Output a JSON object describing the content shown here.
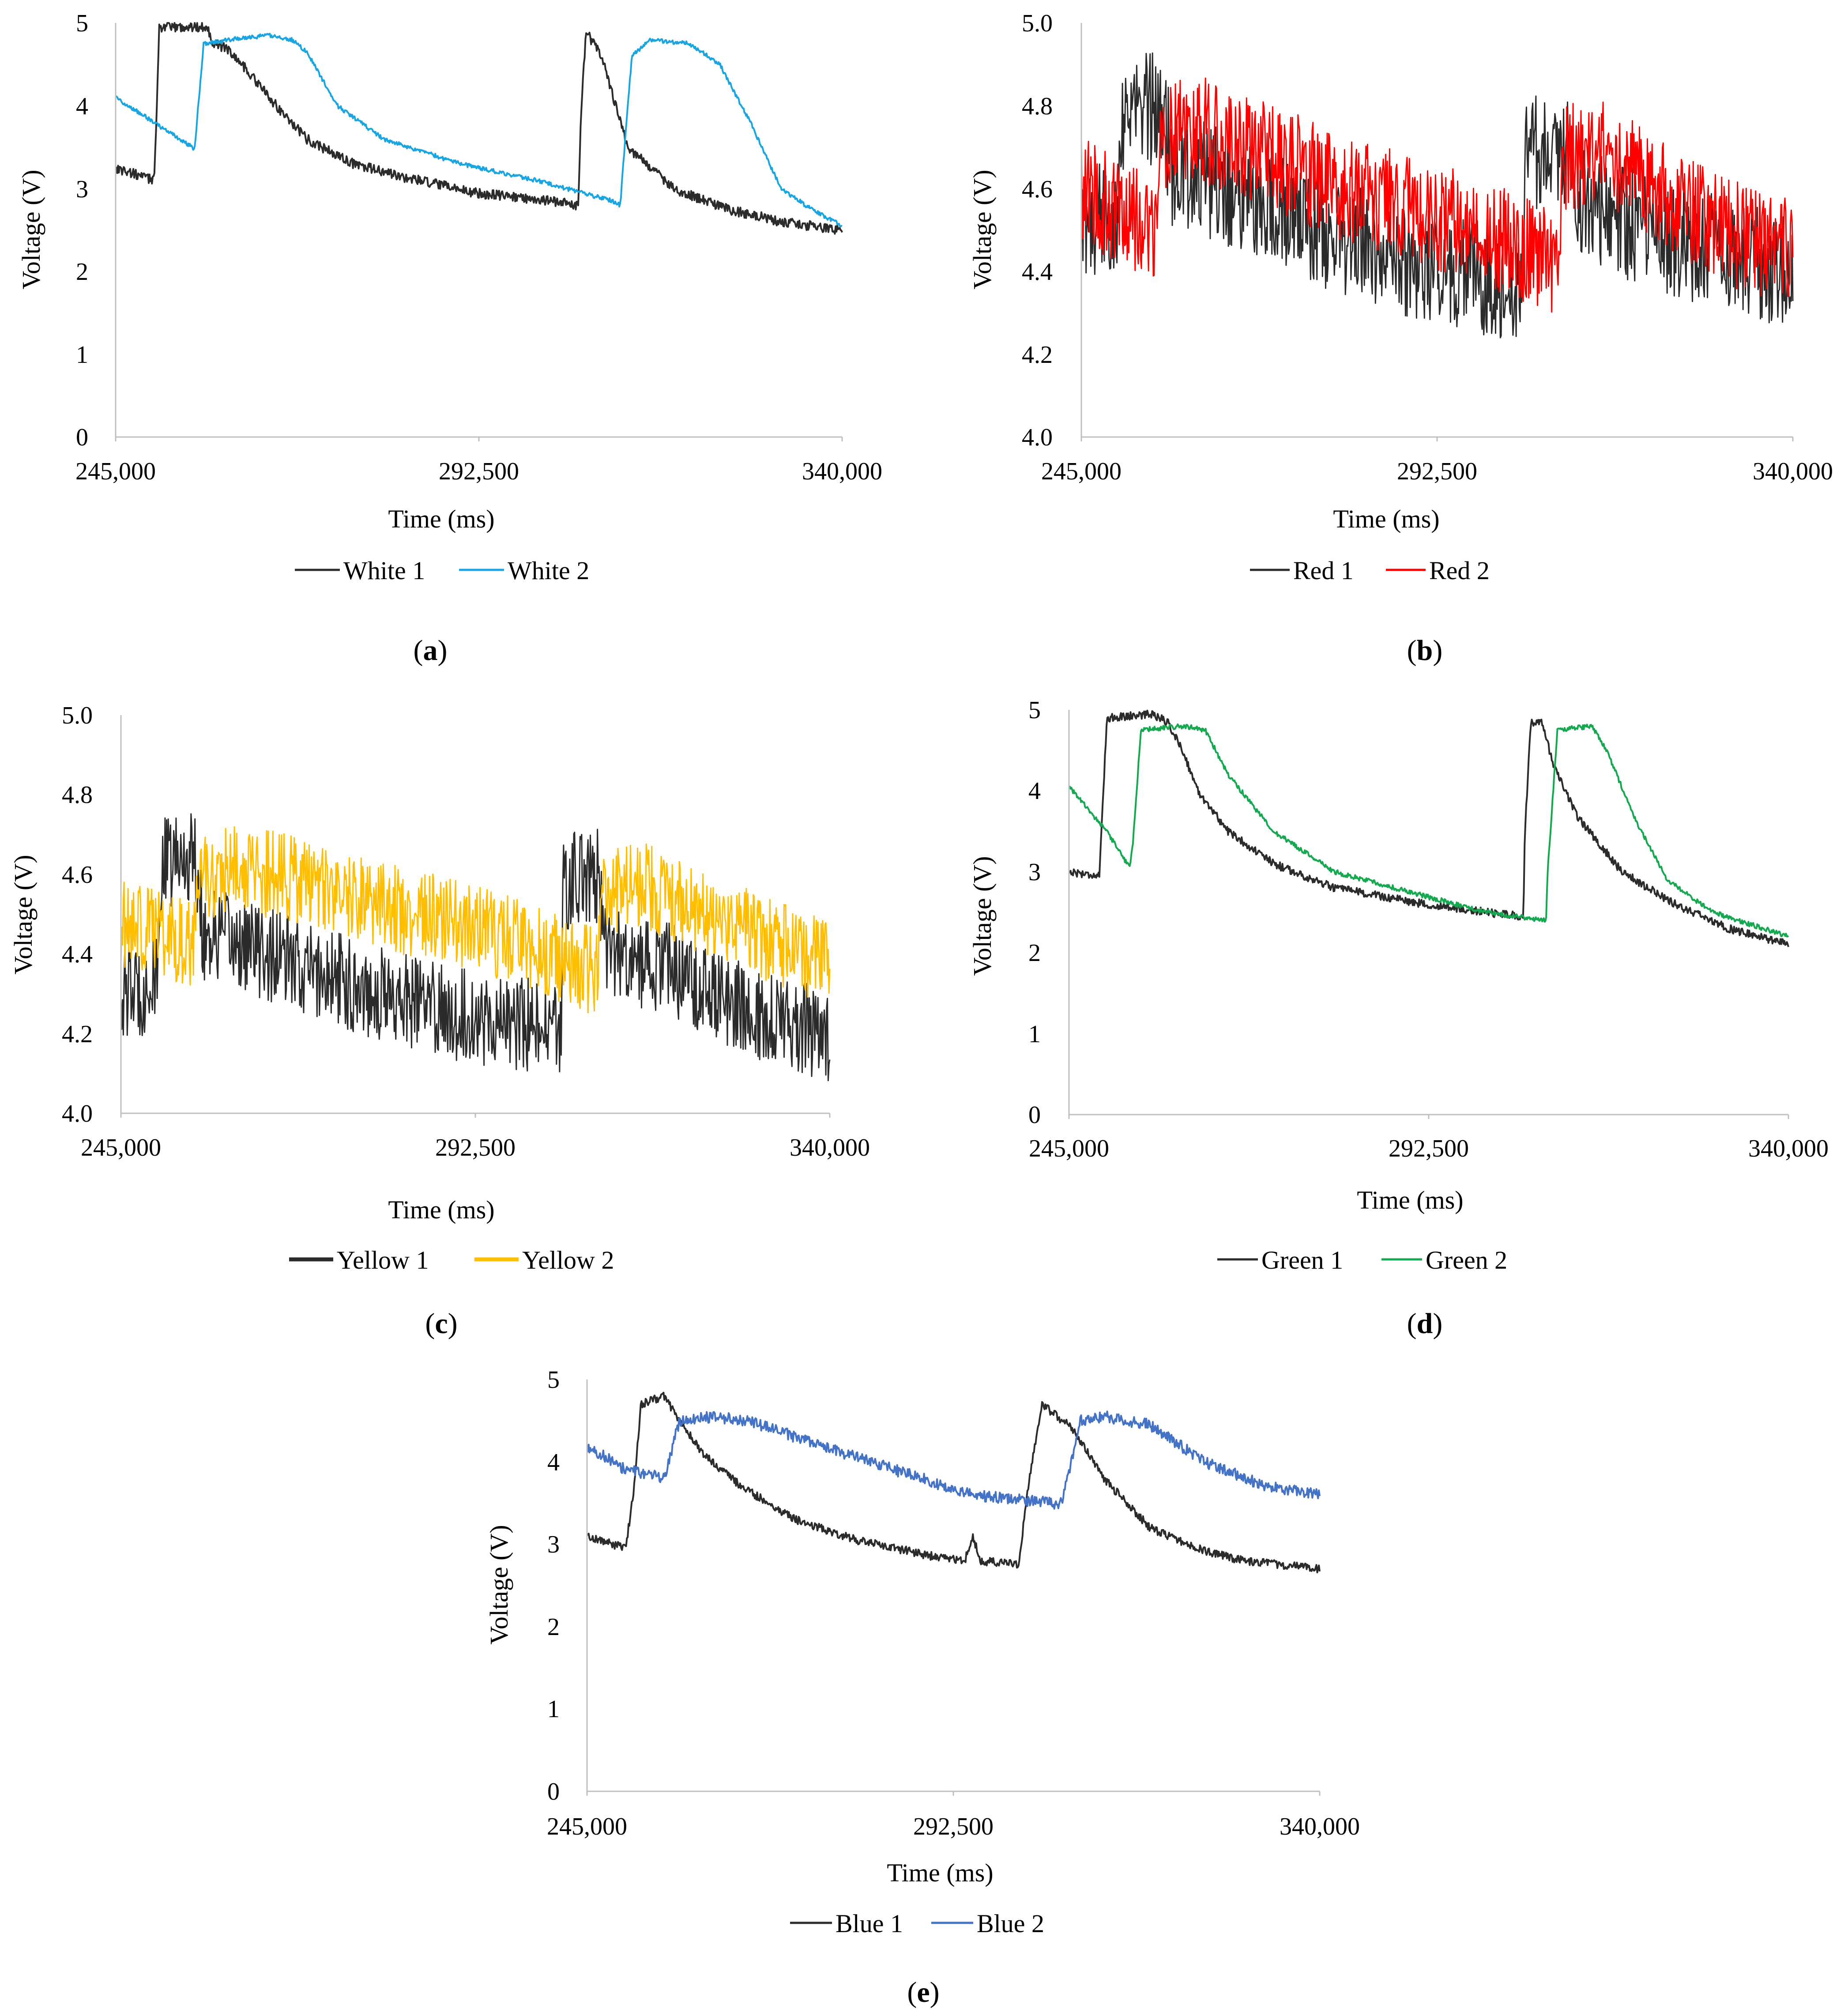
{
  "figure": {
    "panels": [
      {
        "id": "a",
        "caption": "a"
      },
      {
        "id": "b",
        "caption": "b"
      },
      {
        "id": "c",
        "caption": "c"
      },
      {
        "id": "d",
        "caption": "d"
      },
      {
        "id": "e",
        "caption": "e"
      }
    ]
  },
  "chart_data": [
    {
      "panel": "a",
      "type": "line",
      "xlabel": "Time (ms)",
      "ylabel": "Voltage  (V)",
      "xlim": [
        245000,
        340000
      ],
      "ylim": [
        0,
        5
      ],
      "xticks": [
        "245,000",
        "292,500",
        "340,000"
      ],
      "yticks": [
        "0",
        "1",
        "2",
        "3",
        "4",
        "5"
      ],
      "legend_position": "bottom",
      "series": [
        {
          "name": "White 1",
          "color": "#2b2b2b",
          "noise": 0.06,
          "x": [
            245000,
            250000,
            250200,
            250700,
            257000,
            257800,
            259500,
            262000,
            266000,
            270000,
            276000,
            282000,
            292000,
            302000,
            305500,
            305800,
            306500,
            308500,
            312000,
            318000,
            325000,
            332000,
            340000
          ],
          "y": [
            3.25,
            3.1,
            3.5,
            4.95,
            4.95,
            4.75,
            4.7,
            4.45,
            4.0,
            3.6,
            3.3,
            3.15,
            2.95,
            2.85,
            2.8,
            3.8,
            4.9,
            4.6,
            3.5,
            3.0,
            2.75,
            2.6,
            2.5
          ]
        },
        {
          "name": "White 2",
          "color": "#1ba5e0",
          "noise": 0.025,
          "x": [
            245000,
            250000,
            255000,
            255300,
            256500,
            260000,
            265000,
            268000,
            270000,
            274000,
            280000,
            290000,
            300000,
            310000,
            311000,
            311300,
            312500,
            315000,
            320000,
            324000,
            328000,
            332000,
            336000,
            340000
          ],
          "y": [
            4.1,
            3.8,
            3.5,
            3.45,
            4.75,
            4.8,
            4.85,
            4.8,
            4.65,
            4.0,
            3.6,
            3.3,
            3.1,
            2.85,
            2.8,
            3.2,
            4.6,
            4.8,
            4.75,
            4.5,
            3.8,
            3.0,
            2.75,
            2.55
          ]
        }
      ]
    },
    {
      "panel": "b",
      "type": "line",
      "xlabel": "Time (ms)",
      "ylabel": "Voltage  (V)",
      "xlim": [
        245000,
        340000
      ],
      "ylim": [
        4.0,
        5.0
      ],
      "xticks": [
        "245,000",
        "292,500",
        "340,000"
      ],
      "yticks": [
        "4.0",
        "4.2",
        "4.4",
        "4.6",
        "4.8",
        "5.0"
      ],
      "legend_position": "bottom",
      "series": [
        {
          "name": "Red 1",
          "color": "#2b2b2b",
          "noise": 0.14,
          "x": [
            245000,
            250000,
            250300,
            256000,
            257000,
            262000,
            270000,
            280000,
            290000,
            300000,
            304000,
            304300,
            310000,
            311000,
            320000,
            330000,
            340000
          ],
          "y": [
            4.5,
            4.55,
            4.78,
            4.8,
            4.65,
            4.62,
            4.55,
            4.48,
            4.42,
            4.38,
            4.35,
            4.68,
            4.7,
            4.58,
            4.5,
            4.45,
            4.4
          ]
        },
        {
          "name": "Red 2",
          "color": "#ff0000",
          "noise": 0.13,
          "x": [
            245000,
            250000,
            255000,
            255300,
            260000,
            270000,
            280000,
            290000,
            300000,
            309000,
            309300,
            315000,
            320000,
            330000,
            340000
          ],
          "y": [
            4.6,
            4.55,
            4.5,
            4.72,
            4.75,
            4.68,
            4.6,
            4.55,
            4.48,
            4.42,
            4.68,
            4.68,
            4.62,
            4.5,
            4.45
          ]
        }
      ]
    },
    {
      "panel": "c",
      "type": "line",
      "xlabel": "Time (ms)",
      "ylabel": "Voltage  (V)",
      "xlim": [
        245000,
        340000
      ],
      "ylim": [
        4.0,
        5.0
      ],
      "xticks": [
        "245,000",
        "292,500",
        "340,000"
      ],
      "yticks": [
        "4.0",
        "4.2",
        "4.4",
        "4.6",
        "4.8",
        "5.0"
      ],
      "legend_position": "bottom",
      "series": [
        {
          "name": "Yellow 1",
          "color": "#2b2b2b",
          "noise": 0.12,
          "x": [
            245000,
            250000,
            250300,
            255000,
            256000,
            262000,
            270000,
            280000,
            290000,
            300000,
            304000,
            304300,
            309000,
            310000,
            320000,
            330000,
            340000
          ],
          "y": [
            4.3,
            4.32,
            4.62,
            4.65,
            4.45,
            4.42,
            4.36,
            4.3,
            4.25,
            4.22,
            4.2,
            4.58,
            4.6,
            4.4,
            4.35,
            4.25,
            4.2
          ]
        },
        {
          "name": "Yellow 2",
          "color": "#ffbe00",
          "noise": 0.11,
          "x": [
            245000,
            250000,
            255000,
            255300,
            260000,
            270000,
            280000,
            290000,
            300000,
            309000,
            309300,
            315000,
            320000,
            330000,
            340000
          ],
          "y": [
            4.48,
            4.45,
            4.42,
            4.58,
            4.62,
            4.58,
            4.52,
            4.48,
            4.42,
            4.35,
            4.55,
            4.58,
            4.52,
            4.45,
            4.38
          ]
        }
      ]
    },
    {
      "panel": "d",
      "type": "line",
      "xlabel": "Time (ms)",
      "ylabel": "Voltage  (V)",
      "xlim": [
        245000,
        340000
      ],
      "ylim": [
        0,
        5
      ],
      "xticks": [
        "245,000",
        "292,500",
        "340,000"
      ],
      "yticks": [
        "0",
        "1",
        "2",
        "3",
        "4",
        "5"
      ],
      "legend_position": "bottom",
      "series": [
        {
          "name": "Green 1",
          "color": "#2b2b2b",
          "noise": 0.05,
          "x": [
            245000,
            249000,
            249200,
            250000,
            256000,
            258000,
            260000,
            262000,
            266000,
            272000,
            280000,
            292000,
            300000,
            305000,
            305200,
            306000,
            307500,
            309000,
            312000,
            318000,
            325000,
            332000,
            340000
          ],
          "y": [
            3.0,
            2.95,
            3.3,
            4.9,
            4.95,
            4.85,
            4.5,
            4.0,
            3.5,
            3.1,
            2.8,
            2.6,
            2.5,
            2.45,
            3.5,
            4.85,
            4.85,
            4.3,
            3.7,
            3.0,
            2.6,
            2.3,
            2.1
          ]
        },
        {
          "name": "Green 2",
          "color": "#16a850",
          "noise": 0.03,
          "x": [
            245000,
            250000,
            253000,
            253400,
            254500,
            260000,
            263000,
            266000,
            272000,
            280000,
            292000,
            300000,
            308000,
            308200,
            309500,
            314000,
            316000,
            320000,
            324000,
            330000,
            340000
          ],
          "y": [
            4.05,
            3.5,
            3.05,
            3.3,
            4.75,
            4.8,
            4.75,
            4.2,
            3.5,
            3.0,
            2.7,
            2.5,
            2.4,
            3.0,
            4.75,
            4.8,
            4.5,
            3.6,
            2.9,
            2.5,
            2.2
          ]
        }
      ]
    },
    {
      "panel": "e",
      "type": "line",
      "xlabel": "Time (ms)",
      "ylabel": "Voltage  (V)",
      "xlim": [
        245000,
        340000
      ],
      "ylim": [
        0,
        5
      ],
      "xticks": [
        "245,000",
        "292,500",
        "340,000"
      ],
      "yticks": [
        "0",
        "1",
        "2",
        "3",
        "4",
        "5"
      ],
      "legend_position": "bottom",
      "series": [
        {
          "name": "Blue 1",
          "color": "#2b2b2b",
          "noise": 0.05,
          "x": [
            245000,
            250000,
            251000,
            252000,
            255000,
            257000,
            260000,
            265000,
            272000,
            280000,
            290000,
            294000,
            295000,
            296000,
            301000,
            302000,
            304000,
            308000,
            312000,
            318000,
            324000,
            330000,
            335000,
            340000
          ],
          "y": [
            3.1,
            2.95,
            3.6,
            4.7,
            4.8,
            4.5,
            4.1,
            3.7,
            3.3,
            3.05,
            2.85,
            2.8,
            3.1,
            2.8,
            2.75,
            3.6,
            4.7,
            4.4,
            3.8,
            3.2,
            2.95,
            2.8,
            2.75,
            2.7
          ]
        },
        {
          "name": "Blue 2",
          "color": "#4472c4",
          "noise": 0.07,
          "x": [
            245000,
            250000,
            255000,
            257000,
            260000,
            266000,
            275000,
            285000,
            295000,
            305000,
            306500,
            309000,
            312000,
            318000,
            325000,
            333000,
            340000
          ],
          "y": [
            4.2,
            3.9,
            3.8,
            4.5,
            4.55,
            4.5,
            4.2,
            3.9,
            3.6,
            3.5,
            3.5,
            4.5,
            4.55,
            4.45,
            4.0,
            3.7,
            3.6
          ]
        }
      ]
    }
  ]
}
